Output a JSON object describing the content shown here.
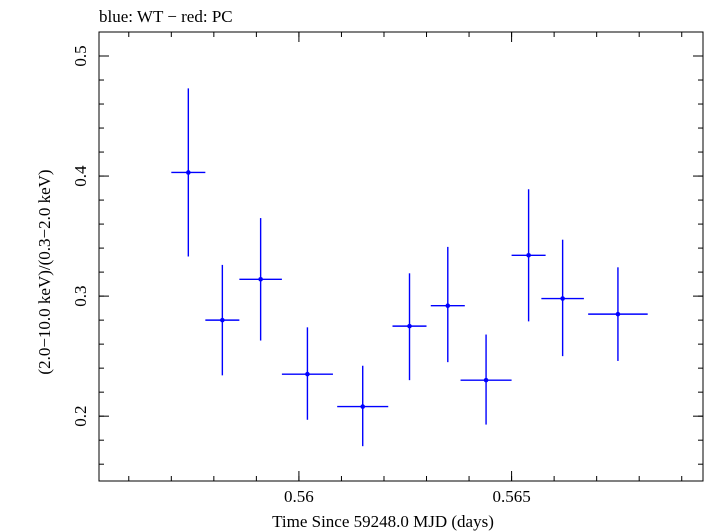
{
  "chart_data": {
    "type": "scatter",
    "title": "blue: WT − red: PC",
    "xlabel": "Time Since 59248.0 MJD (days)",
    "ylabel": "(2.0−10.0 keV)/(0.3−2.0 keV)",
    "xlim": [
      0.5553,
      0.5695
    ],
    "ylim": [
      0.146,
      0.52
    ],
    "x_ticks": [
      {
        "value": 0.56,
        "label": "0.56"
      },
      {
        "value": 0.565,
        "label": "0.565"
      }
    ],
    "y_ticks": [
      {
        "value": 0.2,
        "label": "0.2"
      },
      {
        "value": 0.3,
        "label": "0.3"
      },
      {
        "value": 0.4,
        "label": "0.4"
      },
      {
        "value": 0.5,
        "label": "0.5"
      }
    ],
    "x_minor_step": 0.001,
    "y_minor_step": 0.02,
    "grid": false,
    "series": [
      {
        "name": "WT",
        "color": "#0000ff",
        "points": [
          {
            "x": 0.5574,
            "xerr": 0.0004,
            "y": 0.403,
            "ylo": 0.333,
            "yhi": 0.473
          },
          {
            "x": 0.5582,
            "xerr": 0.0004,
            "y": 0.28,
            "ylo": 0.234,
            "yhi": 0.326
          },
          {
            "x": 0.5591,
            "xerr": 0.0005,
            "y": 0.314,
            "ylo": 0.263,
            "yhi": 0.365
          },
          {
            "x": 0.5602,
            "xerr": 0.0006,
            "y": 0.235,
            "ylo": 0.197,
            "yhi": 0.274
          },
          {
            "x": 0.5615,
            "xerr": 0.0006,
            "y": 0.208,
            "ylo": 0.175,
            "yhi": 0.242
          },
          {
            "x": 0.5626,
            "xerr": 0.0004,
            "y": 0.275,
            "ylo": 0.23,
            "yhi": 0.319
          },
          {
            "x": 0.5635,
            "xerr": 0.0004,
            "y": 0.292,
            "ylo": 0.245,
            "yhi": 0.341
          },
          {
            "x": 0.5644,
            "xerr": 0.0006,
            "y": 0.23,
            "ylo": 0.193,
            "yhi": 0.268
          },
          {
            "x": 0.5654,
            "xerr": 0.0004,
            "y": 0.334,
            "ylo": 0.279,
            "yhi": 0.389
          },
          {
            "x": 0.5662,
            "xerr": 0.0005,
            "y": 0.298,
            "ylo": 0.25,
            "yhi": 0.347
          },
          {
            "x": 0.5675,
            "xerr": 0.0007,
            "y": 0.285,
            "ylo": 0.246,
            "yhi": 0.324
          }
        ]
      }
    ]
  }
}
